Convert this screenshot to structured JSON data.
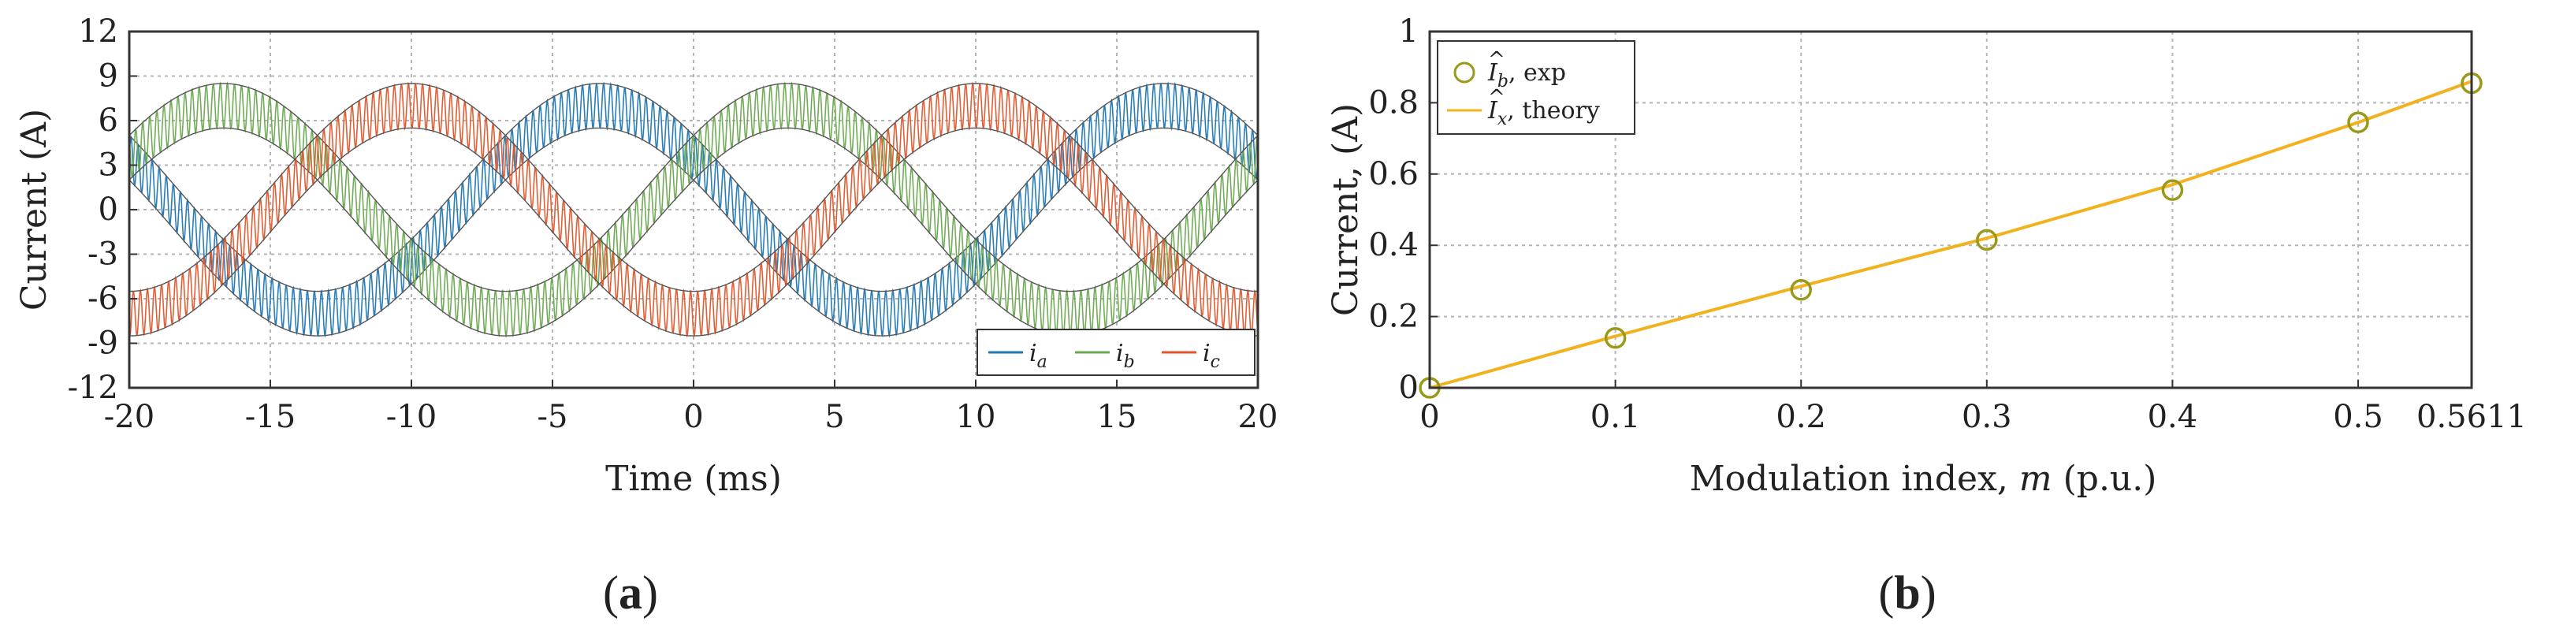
{
  "chart_data": [
    {
      "panel_label": "a",
      "type": "line",
      "title": "",
      "xlabel": "Time (ms)",
      "ylabel": "Current (A)",
      "xlim": [
        -20,
        20
      ],
      "ylim": [
        -12,
        12
      ],
      "xticks": [
        "-20",
        "-15",
        "-10",
        "-5",
        "0",
        "5",
        "10",
        "15",
        "20"
      ],
      "yticks": [
        "12",
        "9",
        "6",
        "3",
        "0",
        "-3",
        "-6",
        "-9",
        "-12"
      ],
      "grid": true,
      "legend_position": "bottom-right",
      "fundamental_frequency_hz": 50,
      "ripple_amplitude_A": 1.5,
      "ripple_cycles_per_ms": 4,
      "series": [
        {
          "name": "i_a",
          "label_base": "i",
          "label_sub": "a",
          "color": "#1f77b4",
          "amplitude_A": 7.0,
          "phase_deg": 150
        },
        {
          "name": "i_b",
          "label_base": "i",
          "label_sub": "b",
          "color": "#6aa84f",
          "amplitude_A": 7.0,
          "phase_deg": 30
        },
        {
          "name": "i_c",
          "label_base": "i",
          "label_sub": "c",
          "color": "#e0562a",
          "amplitude_A": 7.0,
          "phase_deg": -90
        }
      ]
    },
    {
      "panel_label": "b",
      "type": "line",
      "title": "",
      "xlabel_text": "Modulation index, ",
      "xlabel_var": "m",
      "xlabel_unit": " (p.u.)",
      "ylabel": "Current, (A)",
      "xlim": [
        0,
        0.5611
      ],
      "ylim": [
        0,
        1
      ],
      "xticks": [
        "0",
        "0.1",
        "0.2",
        "0.3",
        "0.4",
        "0.5",
        "0.5611"
      ],
      "yticks": [
        "0",
        "0.2",
        "0.4",
        "0.6",
        "0.8",
        "1"
      ],
      "grid": true,
      "legend_position": "top-left",
      "series": [
        {
          "name": "Ib exp",
          "label_base": "I",
          "label_sub": "b",
          "label_suffix": ", exp",
          "marker": "circle",
          "color": "#9a9a1a",
          "x": [
            0,
            0.1,
            0.2,
            0.3,
            0.4,
            0.5,
            0.5611
          ],
          "y": [
            0.0,
            0.14,
            0.275,
            0.415,
            0.555,
            0.745,
            0.855
          ]
        },
        {
          "name": "Ix theory",
          "label_base": "I",
          "label_sub": "x",
          "label_suffix": ", theory",
          "marker": "none",
          "color": "#f2b21f",
          "x": [
            0,
            0.1,
            0.2,
            0.3,
            0.4,
            0.5,
            0.5611
          ],
          "y": [
            0.0,
            0.145,
            0.285,
            0.42,
            0.57,
            0.745,
            0.86
          ]
        }
      ]
    }
  ]
}
